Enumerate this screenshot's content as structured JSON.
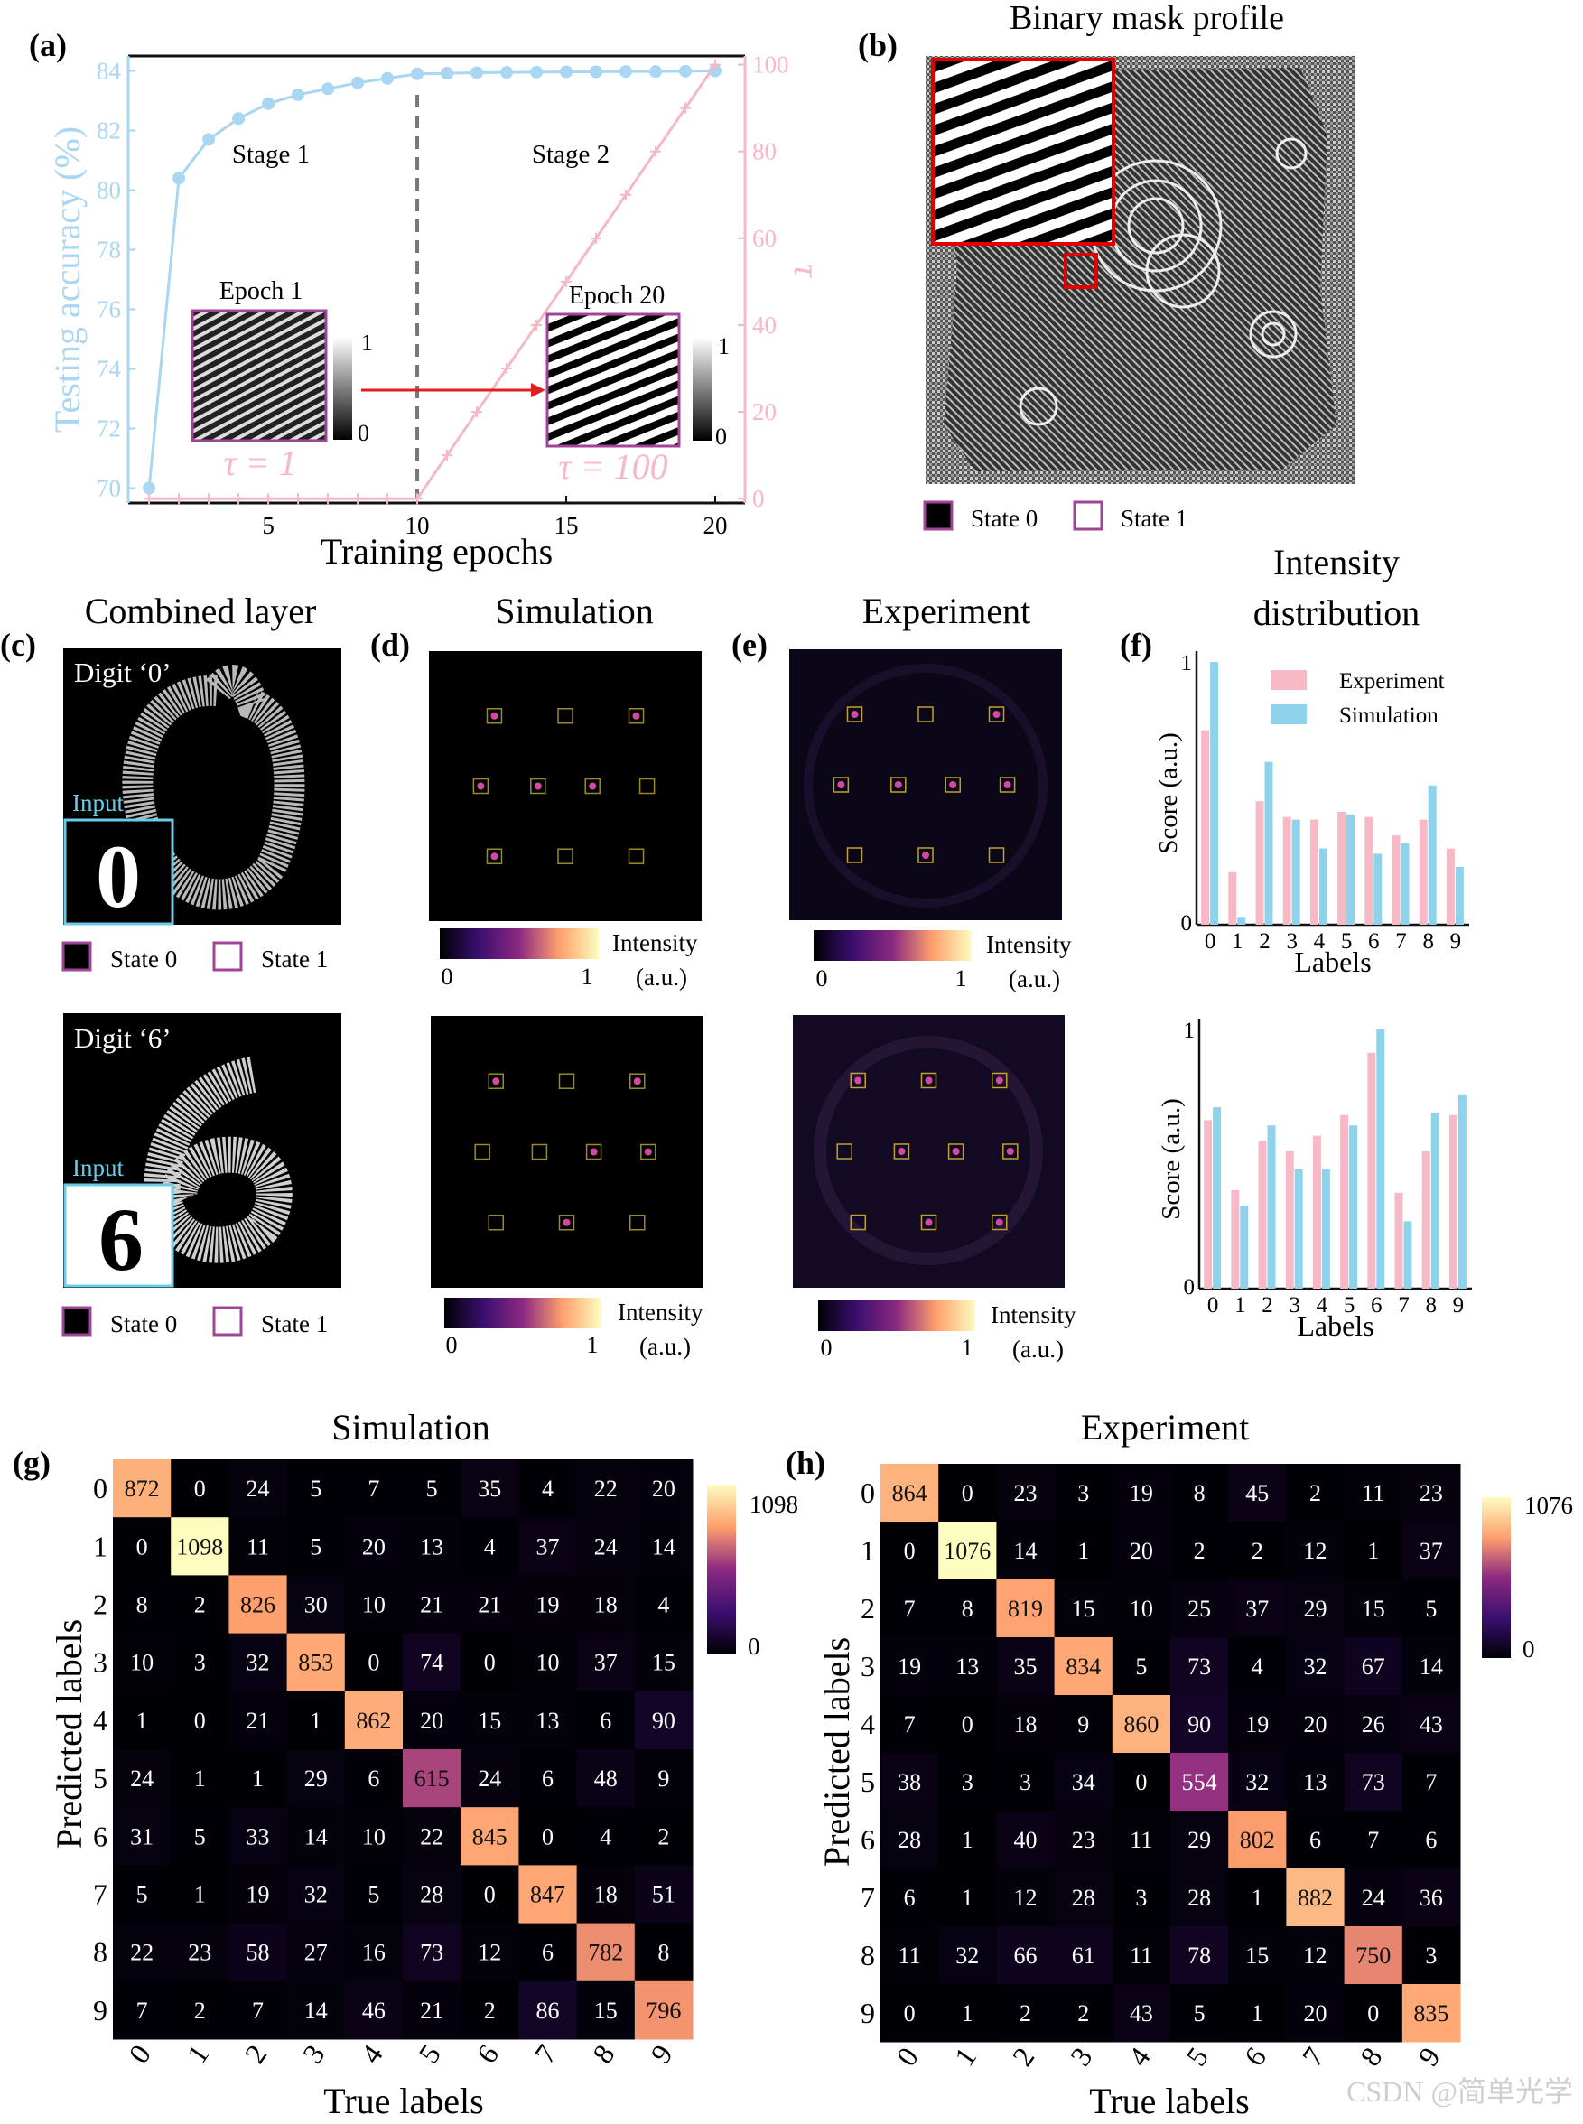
{
  "panels": {
    "a": {
      "letter": "(a)",
      "xlabel": "Training epochs",
      "ylabel_left": "Testing accuracy (%)",
      "ylabel_right": "τ",
      "stage1": "Stage 1",
      "stage2": "Stage 2",
      "epoch1": "Epoch 1",
      "epoch20": "Epoch 20",
      "tau1": "τ = 1",
      "tau100": "τ = 100",
      "cbar_top": "1",
      "cbar_bottom": "0"
    },
    "b": {
      "letter": "(b)",
      "title": "Binary mask profile",
      "state0": "State 0",
      "state1": "State 1"
    },
    "c": {
      "letter": "(c)",
      "title": "Combined layer",
      "digit0": "Digit ‘0’",
      "digit6": "Digit ‘6’",
      "input": "Input",
      "input_digit0": "0",
      "input_digit6": "6",
      "state0": "State 0",
      "state1": "State 1"
    },
    "d": {
      "letter": "(d)",
      "title": "Simulation",
      "cbar_label1": "Intensity",
      "cbar_label2": "(a.u.)",
      "cbar_min": "0",
      "cbar_max": "1"
    },
    "e": {
      "letter": "(e)",
      "title": "Experiment",
      "cbar_label1": "Intensity",
      "cbar_label2": "(a.u.)",
      "cbar_min": "0",
      "cbar_max": "1"
    },
    "f": {
      "letter": "(f)",
      "title1": "Intensity",
      "title2": "distribution",
      "ylabel": "Score (a.u.)",
      "xlabel": "Labels",
      "legend_exp": "Experiment",
      "legend_sim": "Simulation",
      "ytick_top": "1",
      "ytick_bottom": "0"
    },
    "g": {
      "letter": "(g)",
      "title": "Simulation",
      "ylabel": "Predicted labels",
      "xlabel": "True labels",
      "cbar_max": "1098",
      "cbar_min": "0"
    },
    "h": {
      "letter": "(h)",
      "title": "Experiment",
      "ylabel": "Predicted labels",
      "xlabel": "True labels",
      "cbar_max": "1076",
      "cbar_min": "0"
    }
  },
  "watermark": "CSDN @简单光学",
  "chart_data": [
    {
      "type": "line",
      "panel": "a",
      "x": [
        1,
        2,
        3,
        4,
        5,
        6,
        7,
        8,
        9,
        10,
        11,
        12,
        13,
        14,
        15,
        16,
        17,
        18,
        19,
        20
      ],
      "series": [
        {
          "name": "Testing accuracy (%)",
          "axis": "left",
          "color": "#a9d6f2",
          "values": [
            70,
            80.4,
            81.7,
            82.4,
            82.9,
            83.2,
            83.4,
            83.6,
            83.75,
            83.9,
            83.92,
            83.94,
            83.95,
            83.96,
            83.97,
            83.97,
            83.98,
            83.98,
            83.99,
            84
          ]
        },
        {
          "name": "τ",
          "axis": "right",
          "color": "#f5b8c4",
          "values": [
            0,
            0,
            0,
            0,
            0,
            0,
            0,
            0,
            0,
            0,
            10,
            20,
            30,
            40,
            50,
            60,
            70,
            80,
            90,
            100
          ]
        }
      ],
      "xlim": [
        0.3,
        21
      ],
      "xticks": [
        5,
        10,
        15,
        20
      ],
      "ylim_left": [
        69.5,
        84.5
      ],
      "yticks_left": [
        70,
        72,
        74,
        76,
        78,
        80,
        82,
        84
      ],
      "ylim_right": [
        -1,
        102
      ],
      "yticks_right": [
        0,
        20,
        40,
        60,
        80,
        100
      ]
    },
    {
      "type": "bar",
      "panel": "f-top",
      "categories": [
        "0",
        "1",
        "2",
        "3",
        "4",
        "5",
        "6",
        "7",
        "8",
        "9"
      ],
      "series": [
        {
          "name": "Experiment",
          "color": "#f7b9c6",
          "values": [
            0.74,
            0.2,
            0.47,
            0.41,
            0.4,
            0.43,
            0.41,
            0.34,
            0.4,
            0.29
          ]
        },
        {
          "name": "Simulation",
          "color": "#8fd2eb",
          "values": [
            1.0,
            0.03,
            0.62,
            0.4,
            0.29,
            0.42,
            0.27,
            0.31,
            0.53,
            0.22
          ]
        }
      ],
      "ylim": [
        0,
        1
      ]
    },
    {
      "type": "bar",
      "panel": "f-bottom",
      "categories": [
        "0",
        "1",
        "2",
        "3",
        "4",
        "5",
        "6",
        "7",
        "8",
        "9"
      ],
      "series": [
        {
          "name": "Experiment",
          "color": "#f7b9c6",
          "values": [
            0.65,
            0.38,
            0.57,
            0.53,
            0.59,
            0.67,
            0.91,
            0.37,
            0.53,
            0.67
          ]
        },
        {
          "name": "Simulation",
          "color": "#8fd2eb",
          "values": [
            0.7,
            0.32,
            0.63,
            0.46,
            0.46,
            0.63,
            1.0,
            0.26,
            0.68,
            0.75
          ]
        }
      ],
      "ylim": [
        0,
        1
      ]
    },
    {
      "type": "heatmap",
      "panel": "g",
      "row_labels": [
        "0",
        "1",
        "2",
        "3",
        "4",
        "5",
        "6",
        "7",
        "8",
        "9"
      ],
      "col_labels": [
        "0",
        "1",
        "2",
        "3",
        "4",
        "5",
        "6",
        "7",
        "8",
        "9"
      ],
      "max": 1098,
      "values": [
        [
          872,
          0,
          24,
          5,
          7,
          5,
          35,
          4,
          22,
          20
        ],
        [
          0,
          1098,
          11,
          5,
          20,
          13,
          4,
          37,
          24,
          14
        ],
        [
          8,
          2,
          826,
          30,
          10,
          21,
          21,
          19,
          18,
          4
        ],
        [
          10,
          3,
          32,
          853,
          0,
          74,
          0,
          10,
          37,
          15
        ],
        [
          1,
          0,
          21,
          1,
          862,
          20,
          15,
          13,
          6,
          90
        ],
        [
          24,
          1,
          1,
          29,
          6,
          615,
          24,
          6,
          48,
          9
        ],
        [
          31,
          5,
          33,
          14,
          10,
          22,
          845,
          0,
          4,
          2
        ],
        [
          5,
          1,
          19,
          32,
          5,
          28,
          0,
          847,
          18,
          51
        ],
        [
          22,
          23,
          58,
          27,
          16,
          73,
          12,
          6,
          782,
          8
        ],
        [
          7,
          2,
          7,
          14,
          46,
          21,
          2,
          86,
          15,
          796
        ]
      ]
    },
    {
      "type": "heatmap",
      "panel": "h",
      "row_labels": [
        "0",
        "1",
        "2",
        "3",
        "4",
        "5",
        "6",
        "7",
        "8",
        "9"
      ],
      "col_labels": [
        "0",
        "1",
        "2",
        "3",
        "4",
        "5",
        "6",
        "7",
        "8",
        "9"
      ],
      "max": 1076,
      "values": [
        [
          864,
          0,
          23,
          3,
          19,
          8,
          45,
          2,
          11,
          23
        ],
        [
          0,
          1076,
          14,
          1,
          20,
          2,
          2,
          12,
          1,
          37
        ],
        [
          7,
          8,
          819,
          15,
          10,
          25,
          37,
          29,
          15,
          5
        ],
        [
          19,
          13,
          35,
          834,
          5,
          73,
          4,
          32,
          67,
          14
        ],
        [
          7,
          0,
          18,
          9,
          860,
          90,
          19,
          20,
          26,
          43
        ],
        [
          38,
          3,
          3,
          34,
          0,
          554,
          32,
          13,
          73,
          7
        ],
        [
          28,
          1,
          40,
          23,
          11,
          29,
          802,
          6,
          7,
          6
        ],
        [
          6,
          1,
          12,
          28,
          3,
          28,
          1,
          882,
          24,
          36
        ],
        [
          11,
          32,
          66,
          61,
          11,
          78,
          15,
          12,
          750,
          3
        ],
        [
          0,
          1,
          2,
          2,
          43,
          5,
          1,
          20,
          0,
          835
        ]
      ]
    }
  ]
}
